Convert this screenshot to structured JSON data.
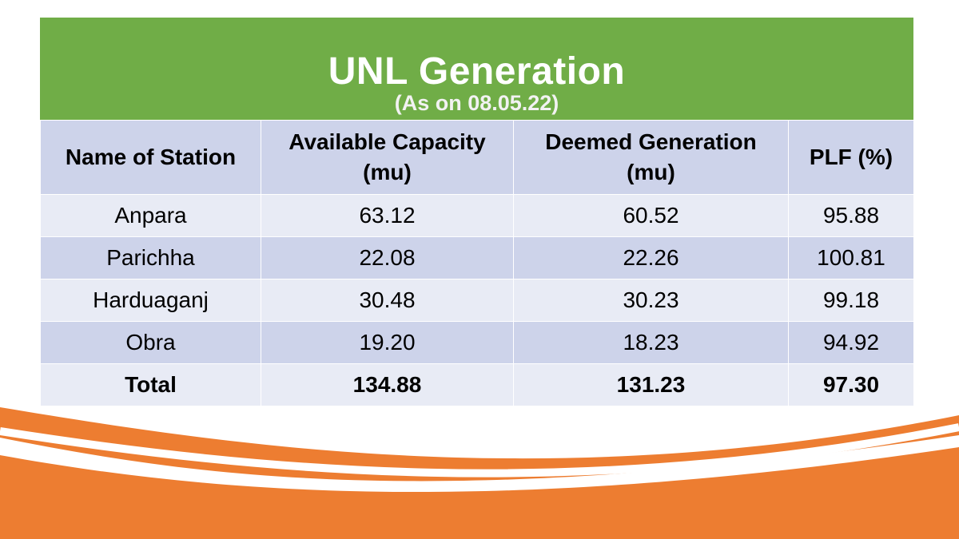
{
  "header": {
    "title": "UNL Generation",
    "subtitle": "(As on 08.05.22)"
  },
  "table": {
    "columns": [
      {
        "line1": "Name of Station",
        "line2": ""
      },
      {
        "line1": "Available Capacity",
        "line2": "(mu)"
      },
      {
        "line1": "Deemed Generation",
        "line2": "(mu)"
      },
      {
        "line1": "PLF (%)",
        "line2": ""
      }
    ],
    "rows": [
      {
        "station": "Anpara",
        "available": "63.12",
        "deemed": "60.52",
        "plf": "95.88"
      },
      {
        "station": "Parichha",
        "available": "22.08",
        "deemed": "22.26",
        "plf": "100.81"
      },
      {
        "station": "Harduaganj",
        "available": "30.48",
        "deemed": "30.23",
        "plf": "99.18"
      },
      {
        "station": "Obra",
        "available": "19.20",
        "deemed": "18.23",
        "plf": "94.92"
      }
    ],
    "total": {
      "station": "Total",
      "available": "134.88",
      "deemed": "131.23",
      "plf": "97.30"
    }
  },
  "colors": {
    "banner": "#70ad47",
    "header_row": "#cdd3ea",
    "light_row": "#e8ebf5",
    "swoosh": "#ed7d31"
  }
}
